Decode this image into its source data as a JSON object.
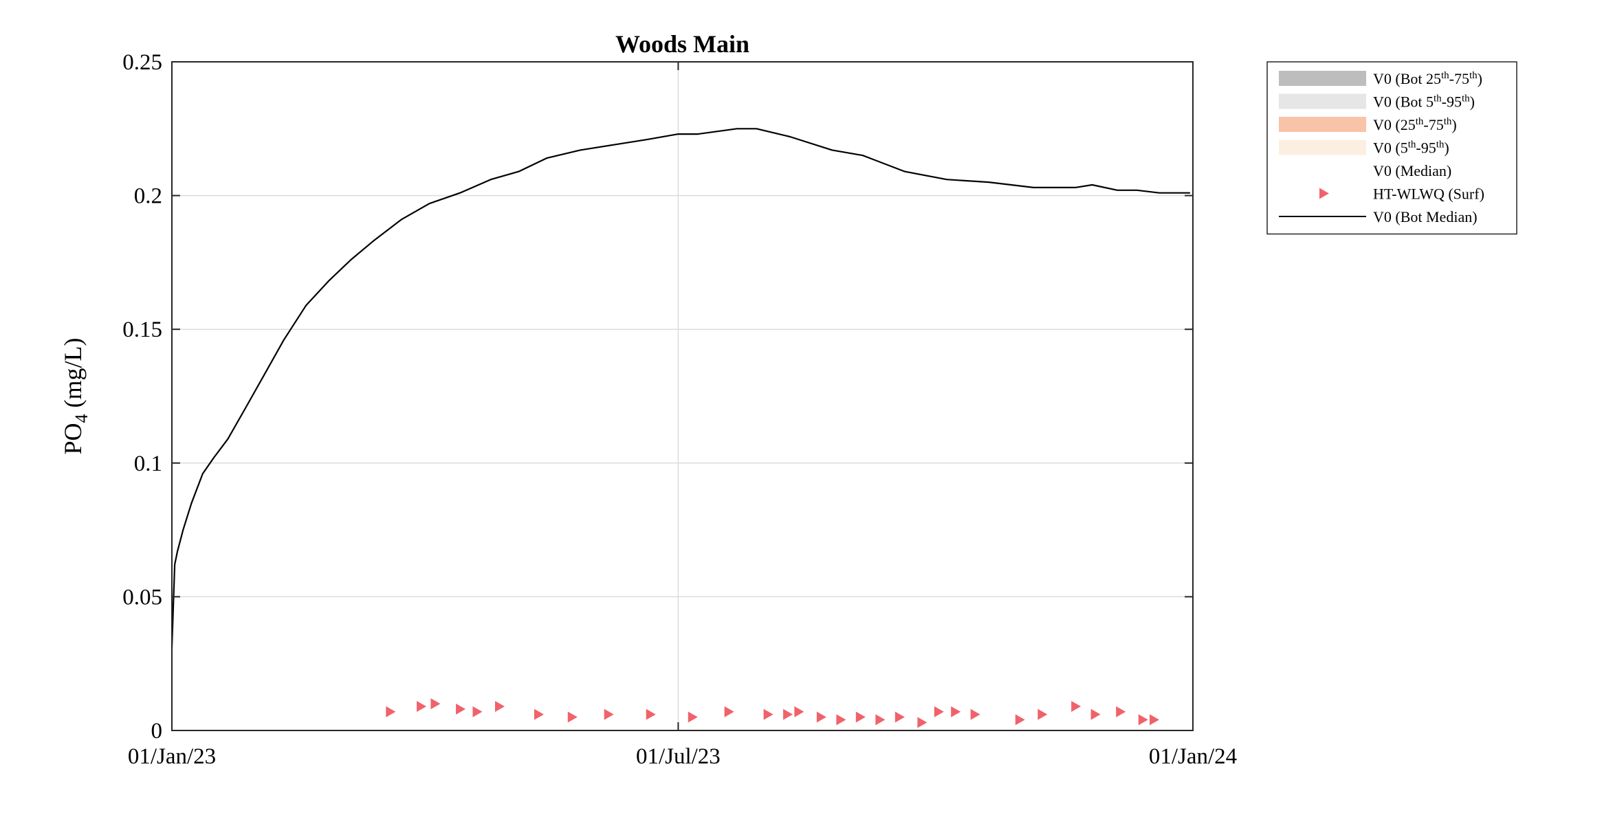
{
  "chart_data": {
    "type": "line",
    "title": "Woods Main",
    "ylabel_main": "PO",
    "ylabel_sub": "4",
    "ylabel_unit": " (mg/L)",
    "xlabel": "",
    "x_range": [
      "2023-01-01",
      "2024-01-01"
    ],
    "ylim": [
      0,
      0.25
    ],
    "yticks": [
      0,
      0.05,
      0.1,
      0.15,
      0.2,
      0.25
    ],
    "ytick_labels": [
      "0",
      "0.05",
      "0.1",
      "0.15",
      "0.2",
      "0.25"
    ],
    "xticks": [
      "2023-01-01",
      "2023-07-01",
      "2024-01-01"
    ],
    "xtick_labels": [
      "01/Jan/23",
      "01/Jul/23",
      "01/Jan/24"
    ],
    "grid": true,
    "legend_position": "outside-top-right",
    "colors": {
      "bot_iqr": "#bdbdbd",
      "bot_5_95": "#e6e6e6",
      "iqr": "#f9c3a8",
      "p5_95": "#fcefe1",
      "observations": "#f0626b",
      "bot_median": "#000000"
    },
    "legend": [
      {
        "key": "bot_iqr",
        "kind": "patch",
        "parts": [
          "V0 (Bot 25",
          "th",
          "-75",
          "th",
          ")"
        ]
      },
      {
        "key": "bot_5_95",
        "kind": "patch",
        "parts": [
          "V0 (Bot 5",
          "th",
          "-95",
          "th",
          ")"
        ]
      },
      {
        "key": "iqr",
        "kind": "patch",
        "parts": [
          "V0 (25",
          "th",
          "-75",
          "th",
          ")"
        ]
      },
      {
        "key": "p5_95",
        "kind": "patch",
        "parts": [
          "V0 (5",
          "th",
          "-95",
          "th",
          ")"
        ]
      },
      {
        "key": "median",
        "kind": "none",
        "parts": [
          "V0 (Median)"
        ]
      },
      {
        "key": "observations",
        "kind": "marker",
        "parts": [
          "HT-WLWQ (Surf)"
        ]
      },
      {
        "key": "bot_median",
        "kind": "line",
        "parts": [
          "V0 (Bot Median)"
        ]
      }
    ],
    "series": [
      {
        "name": "V0 (Bot Median)",
        "x": [
          "2023-01-01",
          "2023-01-02",
          "2023-01-03",
          "2023-01-05",
          "2023-01-08",
          "2023-01-12",
          "2023-01-16",
          "2023-01-21",
          "2023-01-27",
          "2023-02-03",
          "2023-02-10",
          "2023-02-18",
          "2023-02-26",
          "2023-03-06",
          "2023-03-14",
          "2023-03-24",
          "2023-04-03",
          "2023-04-14",
          "2023-04-25",
          "2023-05-05",
          "2023-05-15",
          "2023-05-27",
          "2023-06-08",
          "2023-06-20",
          "2023-07-01",
          "2023-07-08",
          "2023-07-15",
          "2023-07-22",
          "2023-07-29",
          "2023-08-10",
          "2023-08-25",
          "2023-09-05",
          "2023-09-20",
          "2023-10-05",
          "2023-10-20",
          "2023-11-05",
          "2023-11-20",
          "2023-11-26",
          "2023-12-05",
          "2023-12-12",
          "2023-12-20",
          "2023-12-31"
        ],
        "y": [
          0.031,
          0.062,
          0.067,
          0.075,
          0.085,
          0.096,
          0.102,
          0.109,
          0.12,
          0.133,
          0.146,
          0.159,
          0.168,
          0.176,
          0.183,
          0.191,
          0.197,
          0.201,
          0.206,
          0.209,
          0.214,
          0.217,
          0.219,
          0.221,
          0.223,
          0.223,
          0.224,
          0.225,
          0.225,
          0.222,
          0.217,
          0.215,
          0.209,
          0.206,
          0.205,
          0.203,
          0.203,
          0.204,
          0.202,
          0.202,
          0.201,
          0.201
        ]
      },
      {
        "name": "HT-WLWQ (Surf)",
        "marker": "triangle-right",
        "x": [
          "2023-03-20",
          "2023-03-31",
          "2023-04-05",
          "2023-04-14",
          "2023-04-20",
          "2023-04-28",
          "2023-05-12",
          "2023-05-24",
          "2023-06-06",
          "2023-06-21",
          "2023-07-06",
          "2023-07-19",
          "2023-08-02",
          "2023-08-09",
          "2023-08-13",
          "2023-08-21",
          "2023-08-28",
          "2023-09-04",
          "2023-09-11",
          "2023-09-18",
          "2023-09-26",
          "2023-10-02",
          "2023-10-08",
          "2023-10-15",
          "2023-10-31",
          "2023-11-08",
          "2023-11-20",
          "2023-11-27",
          "2023-12-06",
          "2023-12-14",
          "2023-12-18"
        ],
        "y": [
          0.007,
          0.009,
          0.01,
          0.008,
          0.007,
          0.009,
          0.006,
          0.005,
          0.006,
          0.006,
          0.005,
          0.007,
          0.006,
          0.006,
          0.007,
          0.005,
          0.004,
          0.005,
          0.004,
          0.005,
          0.003,
          0.007,
          0.007,
          0.006,
          0.004,
          0.006,
          0.009,
          0.006,
          0.007,
          0.004,
          0.004
        ]
      }
    ]
  }
}
